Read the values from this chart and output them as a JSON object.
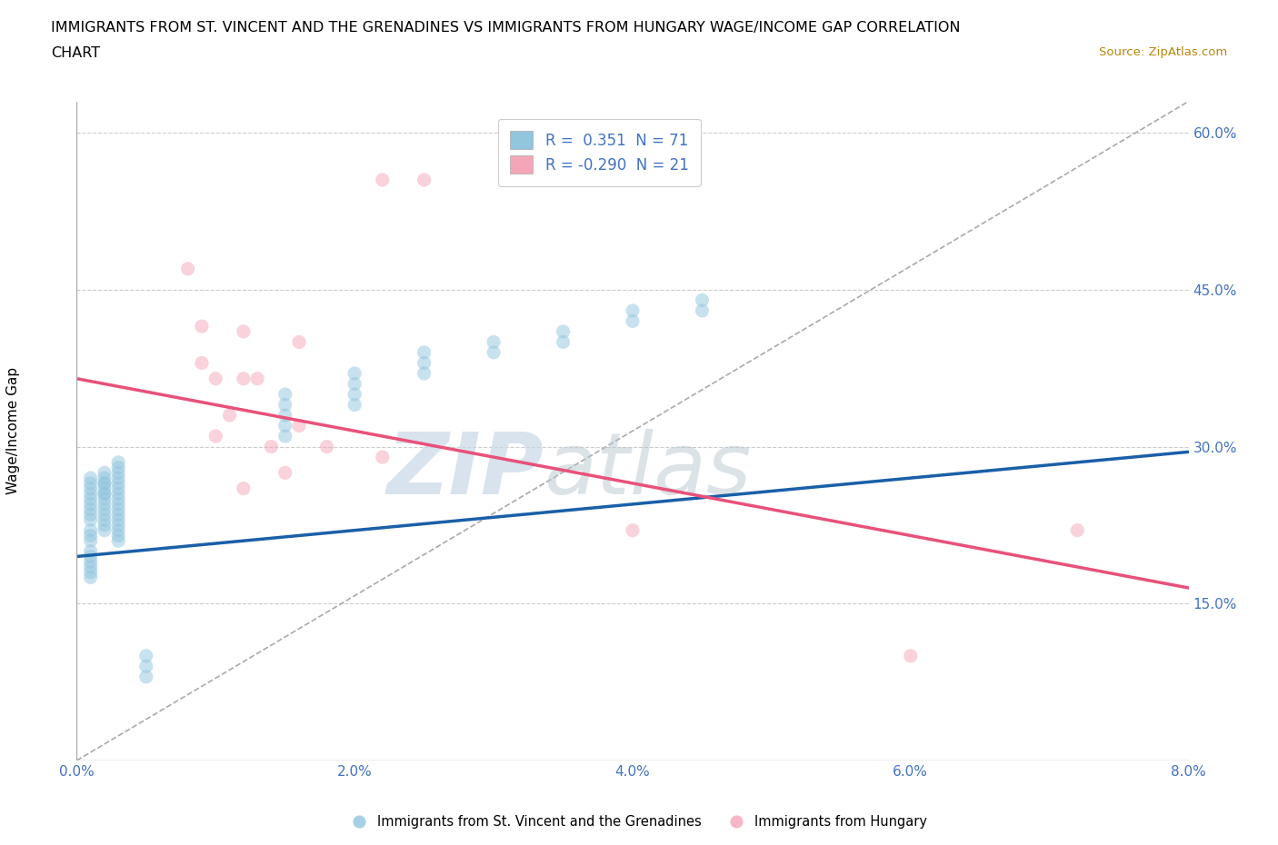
{
  "title_line1": "IMMIGRANTS FROM ST. VINCENT AND THE GRENADINES VS IMMIGRANTS FROM HUNGARY WAGE/INCOME GAP CORRELATION",
  "title_line2": "CHART",
  "source": "Source: ZipAtlas.com",
  "ylabel": "Wage/Income Gap",
  "xlim": [
    0.0,
    0.08
  ],
  "ylim": [
    0.0,
    0.63
  ],
  "xticks": [
    0.0,
    0.02,
    0.04,
    0.06,
    0.08
  ],
  "xtick_labels": [
    "0.0%",
    "2.0%",
    "4.0%",
    "6.0%",
    "8.0%"
  ],
  "yticks": [
    0.15,
    0.3,
    0.45,
    0.6
  ],
  "ytick_labels": [
    "15.0%",
    "30.0%",
    "45.0%",
    "60.0%"
  ],
  "legend_r1": "R =  0.351  N = 71",
  "legend_r2": "R = -0.290  N = 21",
  "blue_color": "#92c5de",
  "pink_color": "#f4a6b8",
  "blue_line_color": "#1a5fa8",
  "pink_line_color": "#e8517a",
  "ref_line_color": "#aaaaaa",
  "blue_scatter_x": [
    0.002,
    0.002,
    0.001,
    0.001,
    0.001,
    0.001,
    0.001,
    0.001,
    0.001,
    0.001,
    0.001,
    0.001,
    0.001,
    0.001,
    0.001,
    0.001,
    0.001,
    0.001,
    0.001,
    0.001,
    0.002,
    0.002,
    0.002,
    0.002,
    0.002,
    0.002,
    0.002,
    0.002,
    0.002,
    0.002,
    0.002,
    0.002,
    0.003,
    0.003,
    0.003,
    0.003,
    0.003,
    0.003,
    0.003,
    0.003,
    0.003,
    0.003,
    0.003,
    0.003,
    0.003,
    0.003,
    0.003,
    0.003,
    0.015,
    0.015,
    0.015,
    0.015,
    0.015,
    0.02,
    0.02,
    0.02,
    0.02,
    0.025,
    0.025,
    0.025,
    0.03,
    0.03,
    0.035,
    0.035,
    0.04,
    0.04,
    0.045,
    0.045,
    0.005,
    0.005,
    0.005
  ],
  "blue_scatter_y": [
    0.265,
    0.255,
    0.27,
    0.265,
    0.26,
    0.255,
    0.25,
    0.245,
    0.24,
    0.235,
    0.23,
    0.22,
    0.215,
    0.21,
    0.2,
    0.195,
    0.19,
    0.185,
    0.18,
    0.175,
    0.275,
    0.27,
    0.265,
    0.26,
    0.255,
    0.25,
    0.245,
    0.24,
    0.235,
    0.23,
    0.225,
    0.22,
    0.285,
    0.28,
    0.275,
    0.27,
    0.265,
    0.26,
    0.255,
    0.25,
    0.245,
    0.24,
    0.235,
    0.23,
    0.225,
    0.22,
    0.215,
    0.21,
    0.35,
    0.34,
    0.33,
    0.32,
    0.31,
    0.37,
    0.36,
    0.35,
    0.34,
    0.39,
    0.38,
    0.37,
    0.4,
    0.39,
    0.41,
    0.4,
    0.43,
    0.42,
    0.44,
    0.43,
    0.1,
    0.09,
    0.08
  ],
  "pink_scatter_x": [
    0.022,
    0.025,
    0.008,
    0.009,
    0.012,
    0.013,
    0.016,
    0.01,
    0.011,
    0.009,
    0.01,
    0.012,
    0.014,
    0.016,
    0.012,
    0.015,
    0.018,
    0.022,
    0.04,
    0.06,
    0.072
  ],
  "pink_scatter_y": [
    0.555,
    0.555,
    0.47,
    0.415,
    0.41,
    0.365,
    0.4,
    0.365,
    0.33,
    0.38,
    0.31,
    0.365,
    0.3,
    0.32,
    0.26,
    0.275,
    0.3,
    0.29,
    0.22,
    0.1,
    0.22
  ],
  "blue_trend_x": [
    0.0,
    0.08
  ],
  "blue_trend_y": [
    0.195,
    0.295
  ],
  "pink_trend_x": [
    0.0,
    0.08
  ],
  "pink_trend_y": [
    0.365,
    0.165
  ],
  "ref_line_x": [
    0.0,
    0.08
  ],
  "ref_line_y": [
    0.0,
    0.63
  ],
  "watermark_zip": "ZIP",
  "watermark_atlas": "atlas",
  "marker_size": 120,
  "alpha": 0.5
}
